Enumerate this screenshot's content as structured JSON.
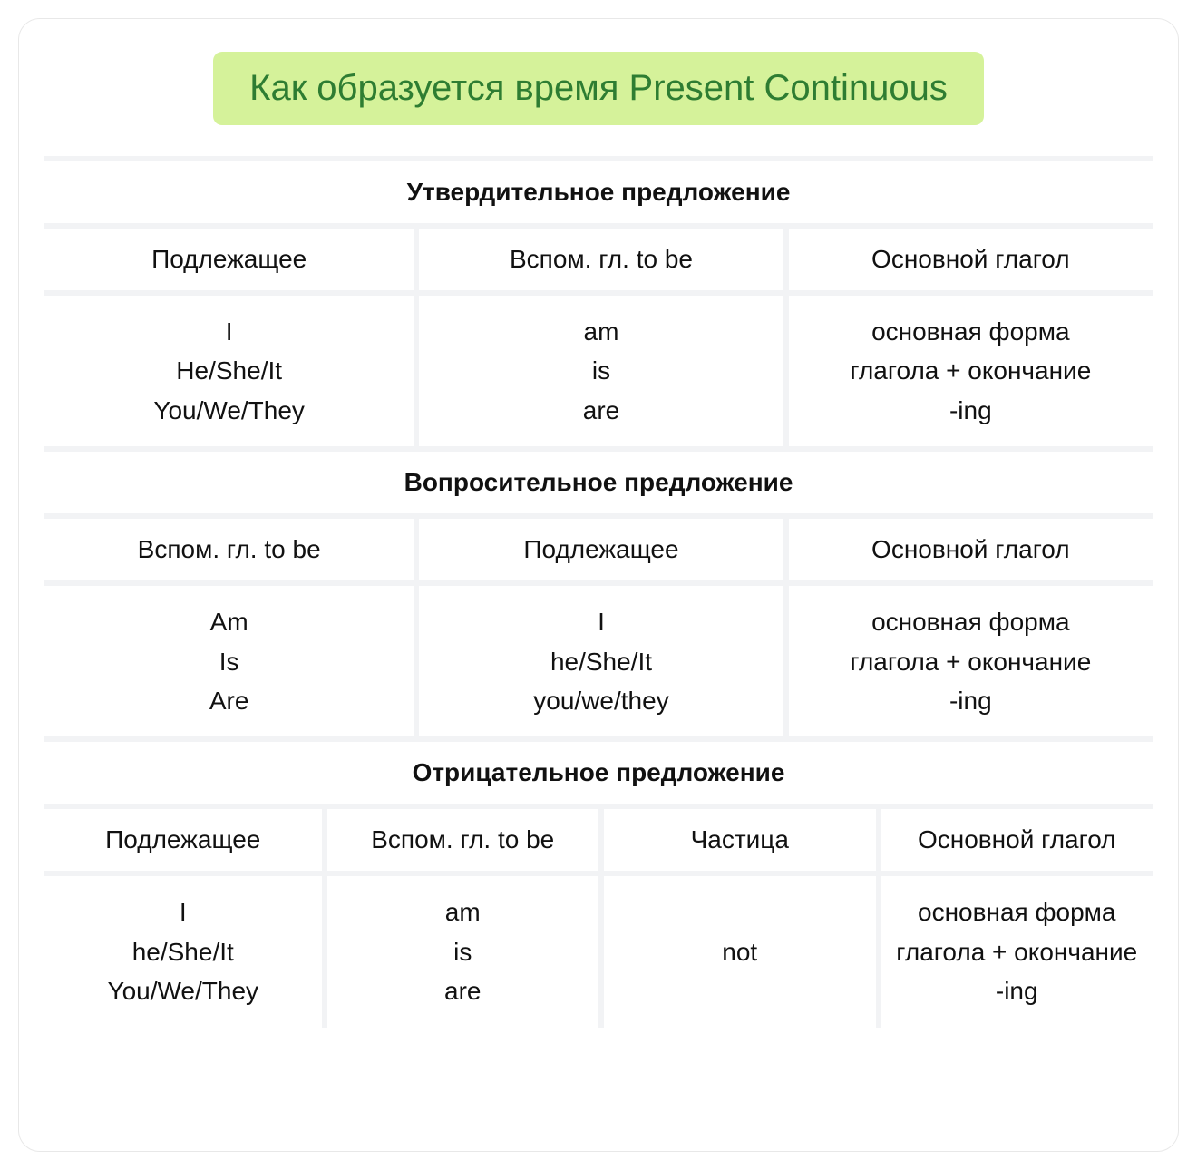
{
  "title": "Как образуется время Present Continuous",
  "colors": {
    "title_bg": "#d5f29a",
    "title_text": "#2e7d32",
    "border": "#f2f3f5",
    "text": "#111111",
    "background": "#ffffff"
  },
  "typography": {
    "title_fontsize": 40,
    "section_title_fontsize": 28,
    "cell_fontsize": 28,
    "section_title_weight": 700
  },
  "sections": [
    {
      "title": "Утвердительное предложение",
      "columns": [
        "Подлежащее",
        "Вспом. гл. to be",
        "Основной глагол"
      ],
      "cells": [
        [
          "I",
          "He/She/It",
          "You/We/They"
        ],
        [
          "am",
          "is",
          "are"
        ],
        [
          "основная форма",
          "глагола + окончание",
          "-ing"
        ]
      ]
    },
    {
      "title": "Вопросительное предложение",
      "columns": [
        "Вспом. гл. to be",
        "Подлежащее",
        "Основной глагол"
      ],
      "cells": [
        [
          "Am",
          "Is",
          "Are"
        ],
        [
          "I",
          "he/She/It",
          "you/we/they"
        ],
        [
          "основная форма",
          "глагола + окончание",
          "-ing"
        ]
      ]
    },
    {
      "title": "Отрицательное предложение",
      "columns": [
        "Подлежащее",
        "Вспом. гл. to be",
        "Частица",
        "Основной глагол"
      ],
      "cells": [
        [
          "I",
          "he/She/It",
          "You/We/They"
        ],
        [
          "am",
          "is",
          "are"
        ],
        [
          "not"
        ],
        [
          "основная форма",
          "глагола + окончание",
          "-ing"
        ]
      ]
    }
  ]
}
